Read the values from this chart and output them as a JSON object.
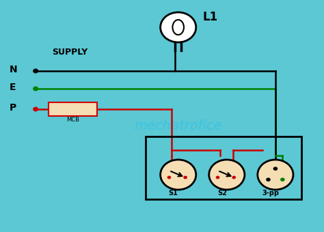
{
  "bg_color": "#5BC8D4",
  "supply_label": "SUPPLY",
  "N_label": "N",
  "E_label": "E",
  "P_label": "P",
  "MCB_label": "MCB",
  "L1_label": "L1",
  "S1_label": "S1",
  "S2_label": "S2",
  "pp_label": "3-pp",
  "watermark": "mechatrofice",
  "line_black": "#000000",
  "line_red": "#CC0000",
  "line_green": "#008000",
  "mcb_fill": "#F5DEB3",
  "switch_fill": "#F5DEB3",
  "bulb_fill": "#FFFFFF",
  "box_color": "#000000"
}
